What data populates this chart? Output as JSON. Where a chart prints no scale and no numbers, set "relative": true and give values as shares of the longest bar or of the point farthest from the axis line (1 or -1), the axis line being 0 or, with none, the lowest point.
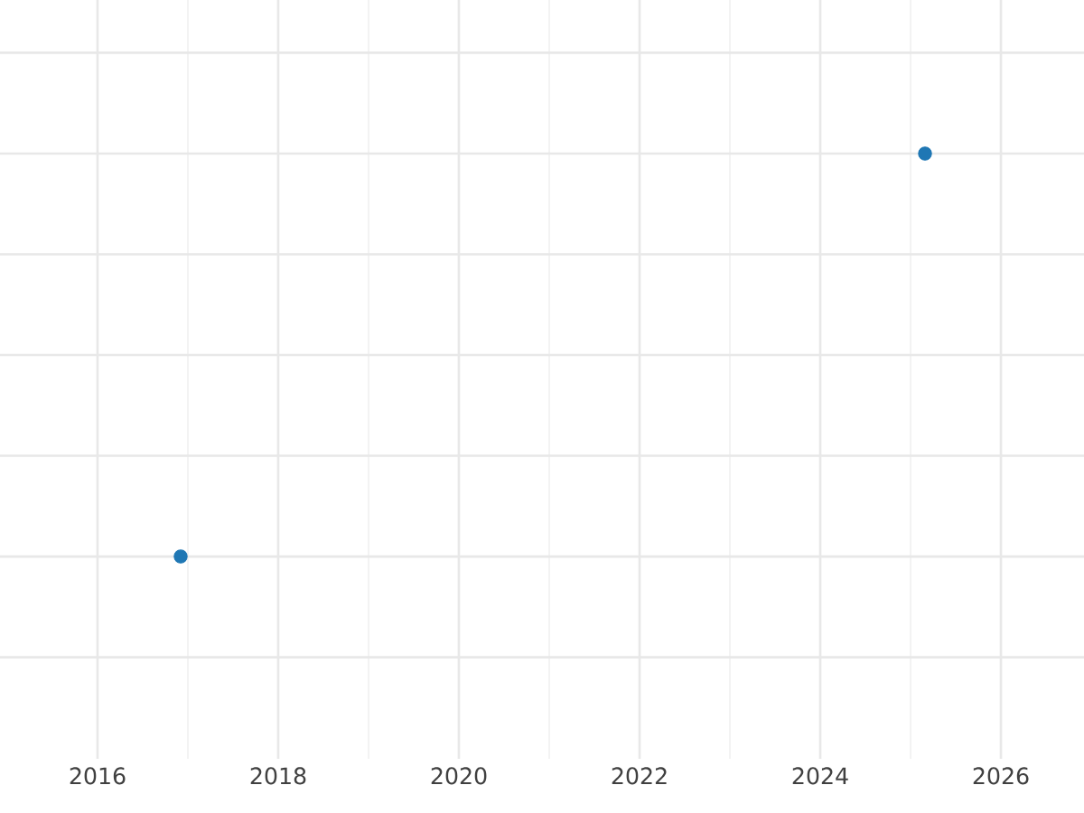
{
  "chart_data": {
    "type": "scatter",
    "x": [
      2016.92,
      2025.16
    ],
    "values": [
      0,
      1
    ],
    "relative": true,
    "color": "#1f77b4",
    "marker": "circle",
    "xlim": [
      2014.92,
      2026.92
    ],
    "xticks": [
      2016,
      2018,
      2020,
      2022,
      2024,
      2026
    ],
    "grid": true,
    "tick_labels": "x"
  }
}
